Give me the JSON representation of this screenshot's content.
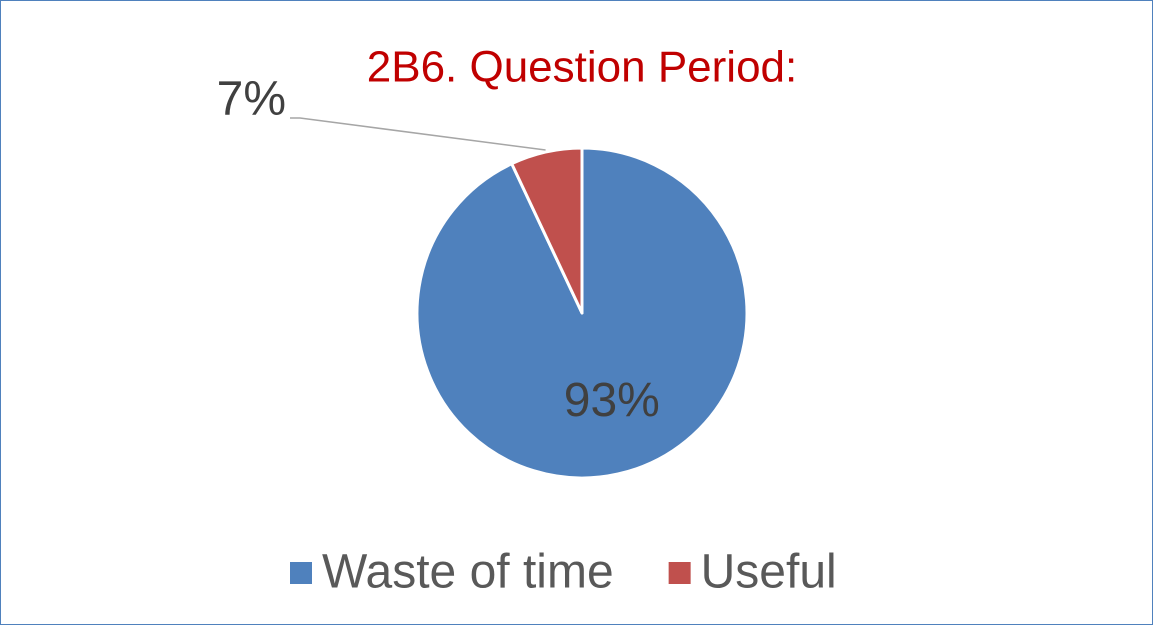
{
  "chart_data": {
    "type": "pie",
    "title": "2B6. Question Period:",
    "categories": [
      "Waste of time",
      "Useful"
    ],
    "values": [
      93,
      7
    ],
    "value_labels": [
      "93%",
      "7%"
    ],
    "colors": [
      "#4f81bd",
      "#c0504d"
    ],
    "legend": "bottom"
  }
}
